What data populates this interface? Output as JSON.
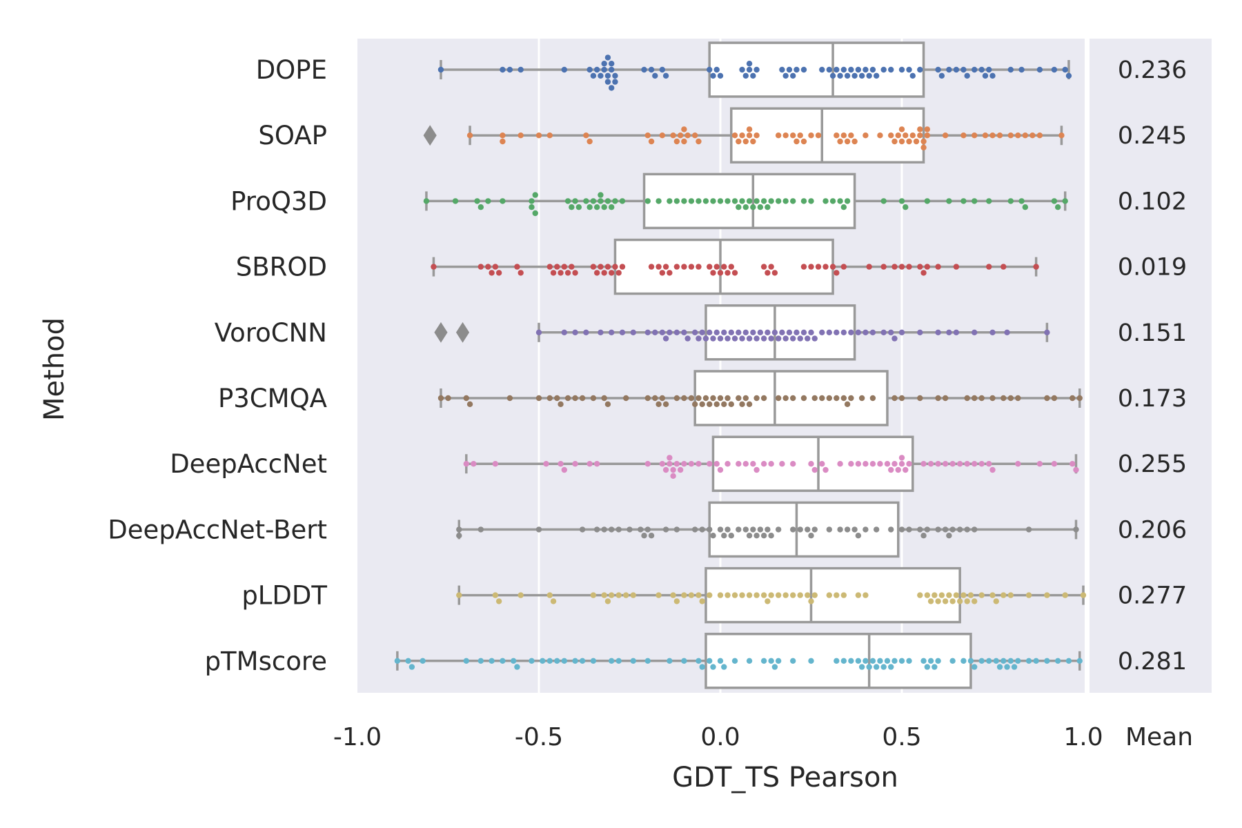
{
  "chart_data": {
    "type": "box-swarm",
    "orientation": "horizontal",
    "xlabel": "GDT_TS Pearson",
    "ylabel": "Method",
    "xlim": [
      -1.0,
      1.0
    ],
    "xticks": [
      -1.0,
      -0.5,
      0.0,
      0.5,
      1.0
    ],
    "xtick_labels": [
      "-1.0",
      "-0.5",
      "0.0",
      "0.5",
      "1.0"
    ],
    "mean_header": "Mean",
    "grid": true,
    "series": [
      {
        "name": "DOPE",
        "color": "#4c72b0",
        "mean": "0.236",
        "box": {
          "whisker_low": -0.77,
          "q1": -0.03,
          "median": 0.31,
          "q3": 0.56,
          "whisker_high": 0.96
        },
        "outliers": [],
        "points": [
          -0.77,
          -0.6,
          -0.58,
          -0.55,
          -0.43,
          -0.36,
          -0.35,
          -0.34,
          -0.33,
          -0.32,
          -0.32,
          -0.31,
          -0.31,
          -0.31,
          -0.3,
          -0.3,
          -0.3,
          -0.29,
          -0.29,
          -0.21,
          -0.19,
          -0.18,
          -0.16,
          -0.15,
          -0.03,
          -0.02,
          -0.01,
          0.0,
          0.06,
          0.07,
          0.08,
          0.08,
          0.09,
          0.1,
          0.17,
          0.18,
          0.19,
          0.2,
          0.21,
          0.23,
          0.28,
          0.3,
          0.31,
          0.32,
          0.33,
          0.34,
          0.35,
          0.36,
          0.37,
          0.38,
          0.39,
          0.4,
          0.41,
          0.42,
          0.43,
          0.45,
          0.47,
          0.5,
          0.52,
          0.53,
          0.55,
          0.6,
          0.61,
          0.63,
          0.65,
          0.67,
          0.68,
          0.7,
          0.72,
          0.73,
          0.74,
          0.75,
          0.8,
          0.83,
          0.88,
          0.92,
          0.95,
          0.96
        ]
      },
      {
        "name": "SOAP",
        "color": "#dd8452",
        "mean": "0.245",
        "box": {
          "whisker_low": -0.69,
          "q1": 0.03,
          "median": 0.28,
          "q3": 0.56,
          "whisker_high": 0.94
        },
        "outliers": [
          -0.8
        ],
        "points": [
          -0.69,
          -0.6,
          -0.6,
          -0.55,
          -0.5,
          -0.47,
          -0.37,
          -0.36,
          -0.2,
          -0.19,
          -0.16,
          -0.13,
          -0.12,
          -0.11,
          -0.1,
          -0.1,
          -0.09,
          -0.07,
          -0.06,
          0.04,
          0.05,
          0.06,
          0.07,
          0.08,
          0.08,
          0.09,
          0.1,
          0.16,
          0.18,
          0.2,
          0.21,
          0.22,
          0.23,
          0.25,
          0.27,
          0.32,
          0.33,
          0.34,
          0.35,
          0.36,
          0.37,
          0.4,
          0.44,
          0.47,
          0.48,
          0.49,
          0.5,
          0.5,
          0.51,
          0.52,
          0.53,
          0.54,
          0.55,
          0.55,
          0.56,
          0.56,
          0.57,
          0.57,
          0.62,
          0.67,
          0.7,
          0.73,
          0.75,
          0.77,
          0.8,
          0.82,
          0.84,
          0.86,
          0.88,
          0.94
        ]
      },
      {
        "name": "ProQ3D",
        "color": "#55a868",
        "mean": "0.102",
        "box": {
          "whisker_low": -0.81,
          "q1": -0.21,
          "median": 0.09,
          "q3": 0.37,
          "whisker_high": 0.95
        },
        "outliers": [],
        "points": [
          -0.81,
          -0.73,
          -0.67,
          -0.66,
          -0.64,
          -0.6,
          -0.52,
          -0.52,
          -0.51,
          -0.51,
          -0.42,
          -0.41,
          -0.4,
          -0.39,
          -0.37,
          -0.36,
          -0.35,
          -0.34,
          -0.33,
          -0.33,
          -0.32,
          -0.31,
          -0.3,
          -0.29,
          -0.27,
          -0.2,
          -0.17,
          -0.14,
          -0.12,
          -0.1,
          -0.08,
          -0.06,
          -0.04,
          -0.02,
          0.0,
          0.02,
          0.04,
          0.05,
          0.06,
          0.07,
          0.08,
          0.09,
          0.1,
          0.11,
          0.12,
          0.13,
          0.14,
          0.16,
          0.18,
          0.2,
          0.23,
          0.25,
          0.29,
          0.31,
          0.33,
          0.34,
          0.35,
          0.45,
          0.5,
          0.51,
          0.57,
          0.63,
          0.67,
          0.7,
          0.74,
          0.8,
          0.83,
          0.84,
          0.92,
          0.93,
          0.95
        ]
      },
      {
        "name": "SBROD",
        "color": "#c44e52",
        "mean": "0.019",
        "box": {
          "whisker_low": -0.79,
          "q1": -0.29,
          "median": 0.0,
          "q3": 0.31,
          "whisker_high": 0.87
        },
        "outliers": [],
        "points": [
          -0.79,
          -0.66,
          -0.64,
          -0.63,
          -0.62,
          -0.61,
          -0.56,
          -0.55,
          -0.47,
          -0.46,
          -0.45,
          -0.44,
          -0.43,
          -0.42,
          -0.41,
          -0.4,
          -0.35,
          -0.34,
          -0.33,
          -0.32,
          -0.31,
          -0.3,
          -0.29,
          -0.28,
          -0.27,
          -0.19,
          -0.17,
          -0.16,
          -0.15,
          -0.14,
          -0.12,
          -0.1,
          -0.08,
          -0.06,
          -0.03,
          -0.02,
          -0.01,
          0.0,
          0.01,
          0.02,
          0.03,
          0.04,
          0.12,
          0.13,
          0.14,
          0.15,
          0.23,
          0.25,
          0.27,
          0.29,
          0.31,
          0.32,
          0.34,
          0.41,
          0.45,
          0.48,
          0.5,
          0.52,
          0.55,
          0.56,
          0.57,
          0.6,
          0.65,
          0.74,
          0.78,
          0.87
        ]
      },
      {
        "name": "VoroCNN",
        "color": "#8172b3",
        "mean": "0.151",
        "box": {
          "whisker_low": -0.5,
          "q1": -0.04,
          "median": 0.15,
          "q3": 0.37,
          "whisker_high": 0.9
        },
        "outliers": [
          -0.77,
          -0.71
        ],
        "points": [
          -0.5,
          -0.43,
          -0.4,
          -0.37,
          -0.33,
          -0.3,
          -0.27,
          -0.24,
          -0.2,
          -0.18,
          -0.16,
          -0.15,
          -0.14,
          -0.12,
          -0.1,
          -0.09,
          -0.07,
          -0.06,
          -0.05,
          -0.04,
          -0.03,
          -0.02,
          -0.01,
          0.0,
          0.01,
          0.02,
          0.03,
          0.04,
          0.05,
          0.06,
          0.07,
          0.08,
          0.09,
          0.1,
          0.11,
          0.12,
          0.13,
          0.14,
          0.15,
          0.16,
          0.17,
          0.18,
          0.19,
          0.2,
          0.21,
          0.22,
          0.23,
          0.24,
          0.25,
          0.26,
          0.28,
          0.3,
          0.32,
          0.34,
          0.36,
          0.38,
          0.4,
          0.42,
          0.45,
          0.47,
          0.48,
          0.5,
          0.55,
          0.6,
          0.63,
          0.65,
          0.7,
          0.75,
          0.79,
          0.9
        ]
      },
      {
        "name": "P3CMQA",
        "color": "#937860",
        "mean": "0.173",
        "box": {
          "whisker_low": -0.77,
          "q1": -0.07,
          "median": 0.15,
          "q3": 0.46,
          "whisker_high": 0.99
        },
        "outliers": [],
        "points": [
          -0.77,
          -0.75,
          -0.7,
          -0.69,
          -0.58,
          -0.5,
          -0.47,
          -0.45,
          -0.44,
          -0.42,
          -0.4,
          -0.38,
          -0.35,
          -0.32,
          -0.31,
          -0.26,
          -0.2,
          -0.18,
          -0.17,
          -0.16,
          -0.15,
          -0.12,
          -0.1,
          -0.08,
          -0.07,
          -0.06,
          -0.05,
          -0.04,
          -0.03,
          -0.02,
          -0.01,
          0.0,
          0.01,
          0.02,
          0.03,
          0.05,
          0.06,
          0.07,
          0.08,
          0.1,
          0.12,
          0.16,
          0.18,
          0.2,
          0.23,
          0.26,
          0.28,
          0.3,
          0.32,
          0.34,
          0.35,
          0.36,
          0.39,
          0.42,
          0.48,
          0.5,
          0.55,
          0.6,
          0.62,
          0.68,
          0.7,
          0.72,
          0.75,
          0.78,
          0.8,
          0.82,
          0.9,
          0.92,
          0.97,
          0.99
        ]
      },
      {
        "name": "DeepAccNet",
        "color": "#da8bc3",
        "mean": "0.255",
        "box": {
          "whisker_low": -0.7,
          "q1": -0.02,
          "median": 0.27,
          "q3": 0.53,
          "whisker_high": 0.98
        },
        "outliers": [],
        "points": [
          -0.7,
          -0.68,
          -0.62,
          -0.48,
          -0.44,
          -0.43,
          -0.4,
          -0.36,
          -0.34,
          -0.2,
          -0.16,
          -0.15,
          -0.14,
          -0.14,
          -0.13,
          -0.13,
          -0.12,
          -0.11,
          -0.1,
          -0.08,
          -0.06,
          -0.03,
          -0.01,
          0.0,
          0.02,
          0.05,
          0.07,
          0.09,
          0.1,
          0.12,
          0.14,
          0.17,
          0.2,
          0.25,
          0.26,
          0.28,
          0.29,
          0.33,
          0.36,
          0.38,
          0.4,
          0.42,
          0.44,
          0.46,
          0.47,
          0.48,
          0.49,
          0.5,
          0.5,
          0.51,
          0.52,
          0.56,
          0.58,
          0.6,
          0.62,
          0.64,
          0.66,
          0.68,
          0.7,
          0.72,
          0.74,
          0.75,
          0.82,
          0.88,
          0.92,
          0.97,
          0.98
        ]
      },
      {
        "name": "DeepAccNet-Bert",
        "color": "#8c8c8c",
        "mean": "0.206",
        "box": {
          "whisker_low": -0.72,
          "q1": -0.03,
          "median": 0.21,
          "q3": 0.49,
          "whisker_high": 0.98
        },
        "outliers": [],
        "points": [
          -0.72,
          -0.72,
          -0.66,
          -0.5,
          -0.38,
          -0.34,
          -0.32,
          -0.3,
          -0.28,
          -0.25,
          -0.22,
          -0.21,
          -0.2,
          -0.19,
          -0.15,
          -0.12,
          -0.07,
          -0.05,
          -0.03,
          -0.02,
          0.0,
          0.01,
          0.02,
          0.03,
          0.05,
          0.07,
          0.08,
          0.09,
          0.1,
          0.11,
          0.12,
          0.13,
          0.14,
          0.16,
          0.2,
          0.22,
          0.24,
          0.25,
          0.26,
          0.3,
          0.33,
          0.35,
          0.37,
          0.38,
          0.4,
          0.43,
          0.47,
          0.5,
          0.52,
          0.55,
          0.56,
          0.57,
          0.6,
          0.62,
          0.63,
          0.64,
          0.66,
          0.68,
          0.7,
          0.85,
          0.98
        ]
      },
      {
        "name": "pLDDT",
        "color": "#ccb974",
        "mean": "0.277",
        "box": {
          "whisker_low": -0.72,
          "q1": -0.04,
          "median": 0.25,
          "q3": 0.66,
          "whisker_high": 1.0
        },
        "outliers": [],
        "points": [
          -0.72,
          -0.62,
          -0.61,
          -0.55,
          -0.47,
          -0.46,
          -0.35,
          -0.32,
          -0.31,
          -0.3,
          -0.28,
          -0.26,
          -0.24,
          -0.17,
          -0.13,
          -0.12,
          -0.1,
          -0.08,
          -0.06,
          -0.05,
          -0.03,
          0.0,
          0.02,
          0.04,
          0.06,
          0.08,
          0.1,
          0.12,
          0.13,
          0.14,
          0.16,
          0.18,
          0.2,
          0.22,
          0.24,
          0.25,
          0.26,
          0.3,
          0.32,
          0.34,
          0.38,
          0.4,
          0.55,
          0.57,
          0.58,
          0.59,
          0.6,
          0.61,
          0.62,
          0.63,
          0.64,
          0.65,
          0.66,
          0.67,
          0.68,
          0.69,
          0.7,
          0.72,
          0.75,
          0.76,
          0.78,
          0.8,
          0.85,
          0.9,
          0.95,
          1.0
        ]
      },
      {
        "name": "pTMscore",
        "color": "#64b5cd",
        "mean": "0.281",
        "box": {
          "whisker_low": -0.89,
          "q1": -0.04,
          "median": 0.41,
          "q3": 0.69,
          "whisker_high": 0.99
        },
        "outliers": [],
        "points": [
          -0.89,
          -0.86,
          -0.85,
          -0.82,
          -0.7,
          -0.66,
          -0.63,
          -0.6,
          -0.57,
          -0.56,
          -0.52,
          -0.49,
          -0.47,
          -0.45,
          -0.43,
          -0.4,
          -0.38,
          -0.35,
          -0.3,
          -0.28,
          -0.24,
          -0.2,
          -0.14,
          -0.1,
          -0.06,
          -0.05,
          -0.03,
          -0.02,
          0.0,
          0.01,
          0.04,
          0.08,
          0.12,
          0.14,
          0.15,
          0.16,
          0.2,
          0.25,
          0.32,
          0.34,
          0.36,
          0.38,
          0.39,
          0.4,
          0.41,
          0.42,
          0.43,
          0.44,
          0.45,
          0.46,
          0.47,
          0.48,
          0.5,
          0.52,
          0.56,
          0.57,
          0.58,
          0.59,
          0.6,
          0.64,
          0.67,
          0.69,
          0.7,
          0.72,
          0.74,
          0.76,
          0.77,
          0.78,
          0.79,
          0.8,
          0.81,
          0.82,
          0.85,
          0.87,
          0.9,
          0.93,
          0.96,
          0.99
        ]
      }
    ]
  }
}
